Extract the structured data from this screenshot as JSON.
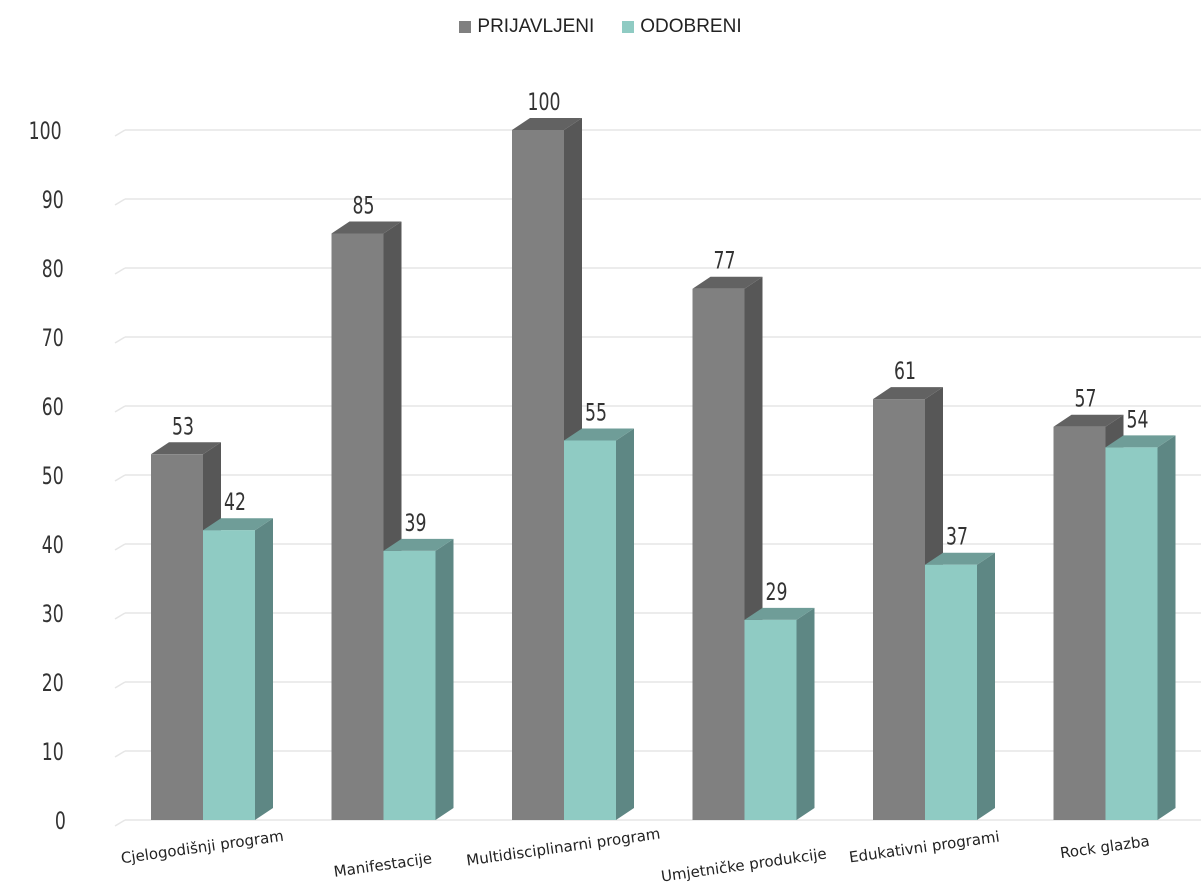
{
  "chart_data": {
    "type": "bar",
    "categories": [
      "Cjelogodišnji program",
      "Manifestacije",
      "Multidisciplinarni program",
      "Umjetničke produkcije",
      "Edukativni programi",
      "Rock glazba"
    ],
    "series": [
      {
        "name": "PRIJAVLJENI",
        "values": [
          53,
          85,
          100,
          77,
          61,
          57
        ],
        "color": "#808080",
        "side_color": "#575757",
        "top_color": "#626262"
      },
      {
        "name": "ODOBRENI",
        "values": [
          42,
          39,
          55,
          29,
          37,
          54
        ],
        "color": "#8fcbc3",
        "side_color": "#5e8784",
        "top_color": "#6f9d98"
      }
    ],
    "yticks": [
      0,
      10,
      20,
      30,
      40,
      50,
      60,
      70,
      80,
      90,
      100
    ],
    "ylim": [
      0,
      100
    ],
    "grid": true,
    "legend_position": "top-center",
    "data_labels": true,
    "style": "3d-column"
  }
}
